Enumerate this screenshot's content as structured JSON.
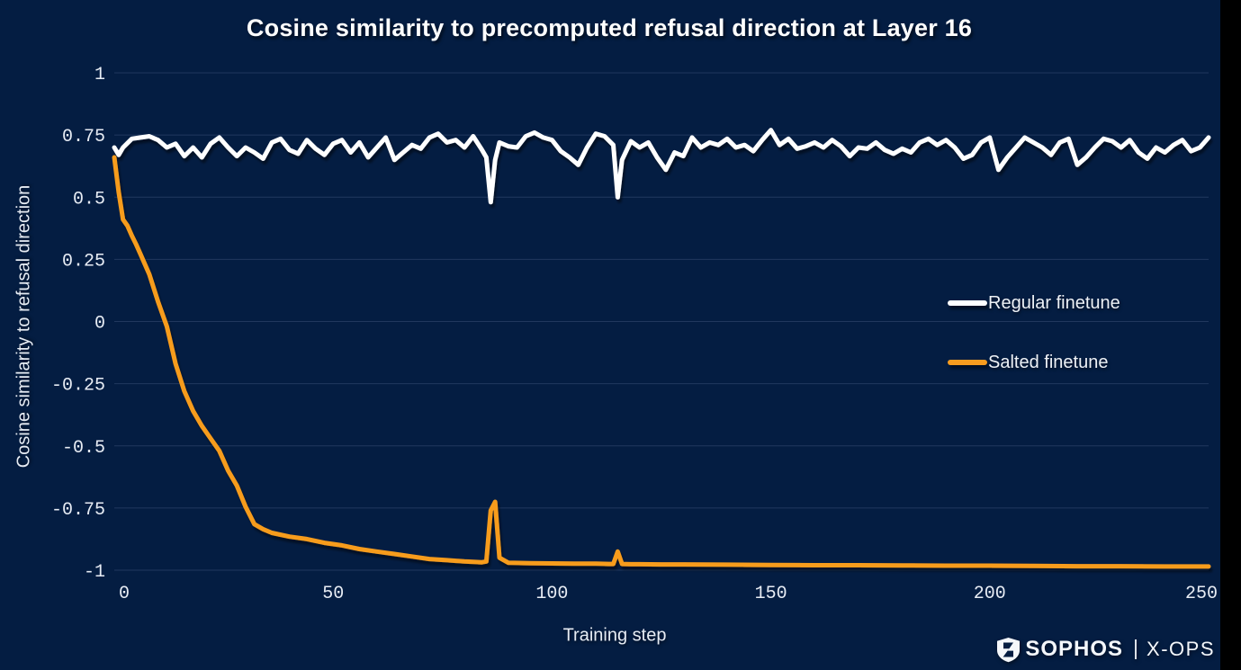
{
  "title": "Cosine similarity to precomputed refusal direction at Layer 16",
  "y_axis": {
    "label": "Cosine similarity to refusal direction",
    "ticks": [
      "1",
      "0.75",
      "0.5",
      "0.25",
      "0",
      "-0.25",
      "-0.5",
      "-0.75",
      "-1"
    ]
  },
  "x_axis": {
    "label": "Training step",
    "ticks": [
      "0",
      "50",
      "100",
      "150",
      "200",
      "250"
    ]
  },
  "legend": {
    "items": [
      {
        "label": "Regular finetune",
        "color": "#ffffff"
      },
      {
        "label": "Salted finetune",
        "color": "#f79c1f"
      }
    ]
  },
  "branding": {
    "shield_icon": "sophos-shield",
    "wordmark": "SOPHOS",
    "divider": "|",
    "suffix": "X-OPS"
  },
  "colors": {
    "background": "#041d42",
    "gridline": "#2b4168",
    "text": "#e7ecf4",
    "regular_line": "#ffffff",
    "salted_line": "#f79c1f",
    "letterbox": "#000000"
  },
  "chart_data": {
    "type": "line",
    "title": "Cosine similarity to precomputed refusal direction at Layer 16",
    "xlabel": "Training step",
    "ylabel": "Cosine similarity to refusal direction",
    "xlim": [
      0,
      250
    ],
    "ylim": [
      -1,
      1
    ],
    "x_ticks": [
      0,
      50,
      100,
      150,
      200,
      250
    ],
    "y_ticks": [
      1,
      0.75,
      0.5,
      0.25,
      0,
      -0.25,
      -0.5,
      -0.75,
      -1
    ],
    "grid": "horizontal",
    "legend_position": "middle-right",
    "series": [
      {
        "name": "Regular finetune",
        "color": "#ffffff",
        "x": [
          0,
          1,
          2,
          4,
          6,
          8,
          10,
          12,
          14,
          16,
          18,
          20,
          22,
          24,
          26,
          28,
          30,
          32,
          34,
          36,
          38,
          40,
          42,
          44,
          46,
          48,
          50,
          52,
          54,
          56,
          58,
          60,
          62,
          64,
          66,
          68,
          70,
          72,
          74,
          76,
          78,
          80,
          82,
          84,
          85,
          86,
          87,
          88,
          90,
          92,
          94,
          96,
          98,
          100,
          102,
          104,
          106,
          108,
          110,
          112,
          114,
          115,
          116,
          118,
          120,
          122,
          124,
          126,
          128,
          130,
          132,
          134,
          136,
          138,
          140,
          142,
          144,
          146,
          148,
          150,
          152,
          154,
          156,
          158,
          160,
          162,
          164,
          166,
          168,
          170,
          172,
          174,
          176,
          178,
          180,
          182,
          184,
          186,
          188,
          190,
          192,
          194,
          196,
          198,
          200,
          202,
          204,
          206,
          208,
          210,
          212,
          214,
          216,
          218,
          220,
          222,
          224,
          226,
          228,
          230,
          232,
          234,
          236,
          238,
          240,
          242,
          244,
          246,
          248,
          250
        ],
        "y": [
          0.7,
          0.67,
          0.7,
          0.735,
          0.74,
          0.745,
          0.73,
          0.7,
          0.715,
          0.665,
          0.7,
          0.66,
          0.715,
          0.74,
          0.7,
          0.665,
          0.7,
          0.68,
          0.655,
          0.72,
          0.735,
          0.69,
          0.675,
          0.73,
          0.695,
          0.67,
          0.715,
          0.73,
          0.68,
          0.72,
          0.66,
          0.7,
          0.74,
          0.65,
          0.68,
          0.71,
          0.695,
          0.74,
          0.755,
          0.72,
          0.73,
          0.7,
          0.745,
          0.69,
          0.66,
          0.48,
          0.65,
          0.72,
          0.705,
          0.7,
          0.745,
          0.76,
          0.74,
          0.73,
          0.685,
          0.66,
          0.63,
          0.7,
          0.755,
          0.745,
          0.71,
          0.5,
          0.65,
          0.725,
          0.7,
          0.72,
          0.66,
          0.61,
          0.68,
          0.665,
          0.74,
          0.7,
          0.72,
          0.71,
          0.735,
          0.7,
          0.71,
          0.685,
          0.73,
          0.77,
          0.71,
          0.735,
          0.695,
          0.705,
          0.72,
          0.7,
          0.73,
          0.705,
          0.665,
          0.7,
          0.695,
          0.72,
          0.69,
          0.675,
          0.695,
          0.68,
          0.72,
          0.735,
          0.71,
          0.73,
          0.7,
          0.655,
          0.67,
          0.72,
          0.74,
          0.61,
          0.66,
          0.7,
          0.74,
          0.72,
          0.7,
          0.67,
          0.72,
          0.735,
          0.63,
          0.66,
          0.7,
          0.735,
          0.725,
          0.7,
          0.73,
          0.68,
          0.655,
          0.7,
          0.68,
          0.71,
          0.73,
          0.685,
          0.7,
          0.74
        ]
      },
      {
        "name": "Salted finetune",
        "color": "#f79c1f",
        "x": [
          0,
          1,
          2,
          3,
          4,
          5,
          6,
          8,
          10,
          12,
          14,
          16,
          18,
          20,
          22,
          24,
          26,
          28,
          30,
          32,
          34,
          36,
          40,
          44,
          48,
          52,
          56,
          60,
          64,
          68,
          72,
          76,
          80,
          84,
          85,
          86,
          87,
          88,
          90,
          95,
          100,
          105,
          110,
          113,
          114,
          115,
          116,
          118,
          120,
          125,
          130,
          140,
          150,
          160,
          170,
          180,
          190,
          200,
          210,
          220,
          230,
          240,
          245,
          250
        ],
        "y": [
          0.66,
          0.52,
          0.41,
          0.385,
          0.345,
          0.31,
          0.27,
          0.19,
          0.08,
          -0.02,
          -0.17,
          -0.28,
          -0.36,
          -0.42,
          -0.47,
          -0.52,
          -0.6,
          -0.66,
          -0.745,
          -0.815,
          -0.835,
          -0.85,
          -0.865,
          -0.875,
          -0.89,
          -0.9,
          -0.915,
          -0.925,
          -0.935,
          -0.945,
          -0.955,
          -0.96,
          -0.965,
          -0.968,
          -0.965,
          -0.76,
          -0.725,
          -0.95,
          -0.97,
          -0.972,
          -0.973,
          -0.974,
          -0.974,
          -0.975,
          -0.975,
          -0.925,
          -0.975,
          -0.976,
          -0.976,
          -0.977,
          -0.977,
          -0.978,
          -0.979,
          -0.98,
          -0.98,
          -0.981,
          -0.982,
          -0.982,
          -0.983,
          -0.984,
          -0.984,
          -0.985,
          -0.985,
          -0.985
        ]
      }
    ]
  }
}
